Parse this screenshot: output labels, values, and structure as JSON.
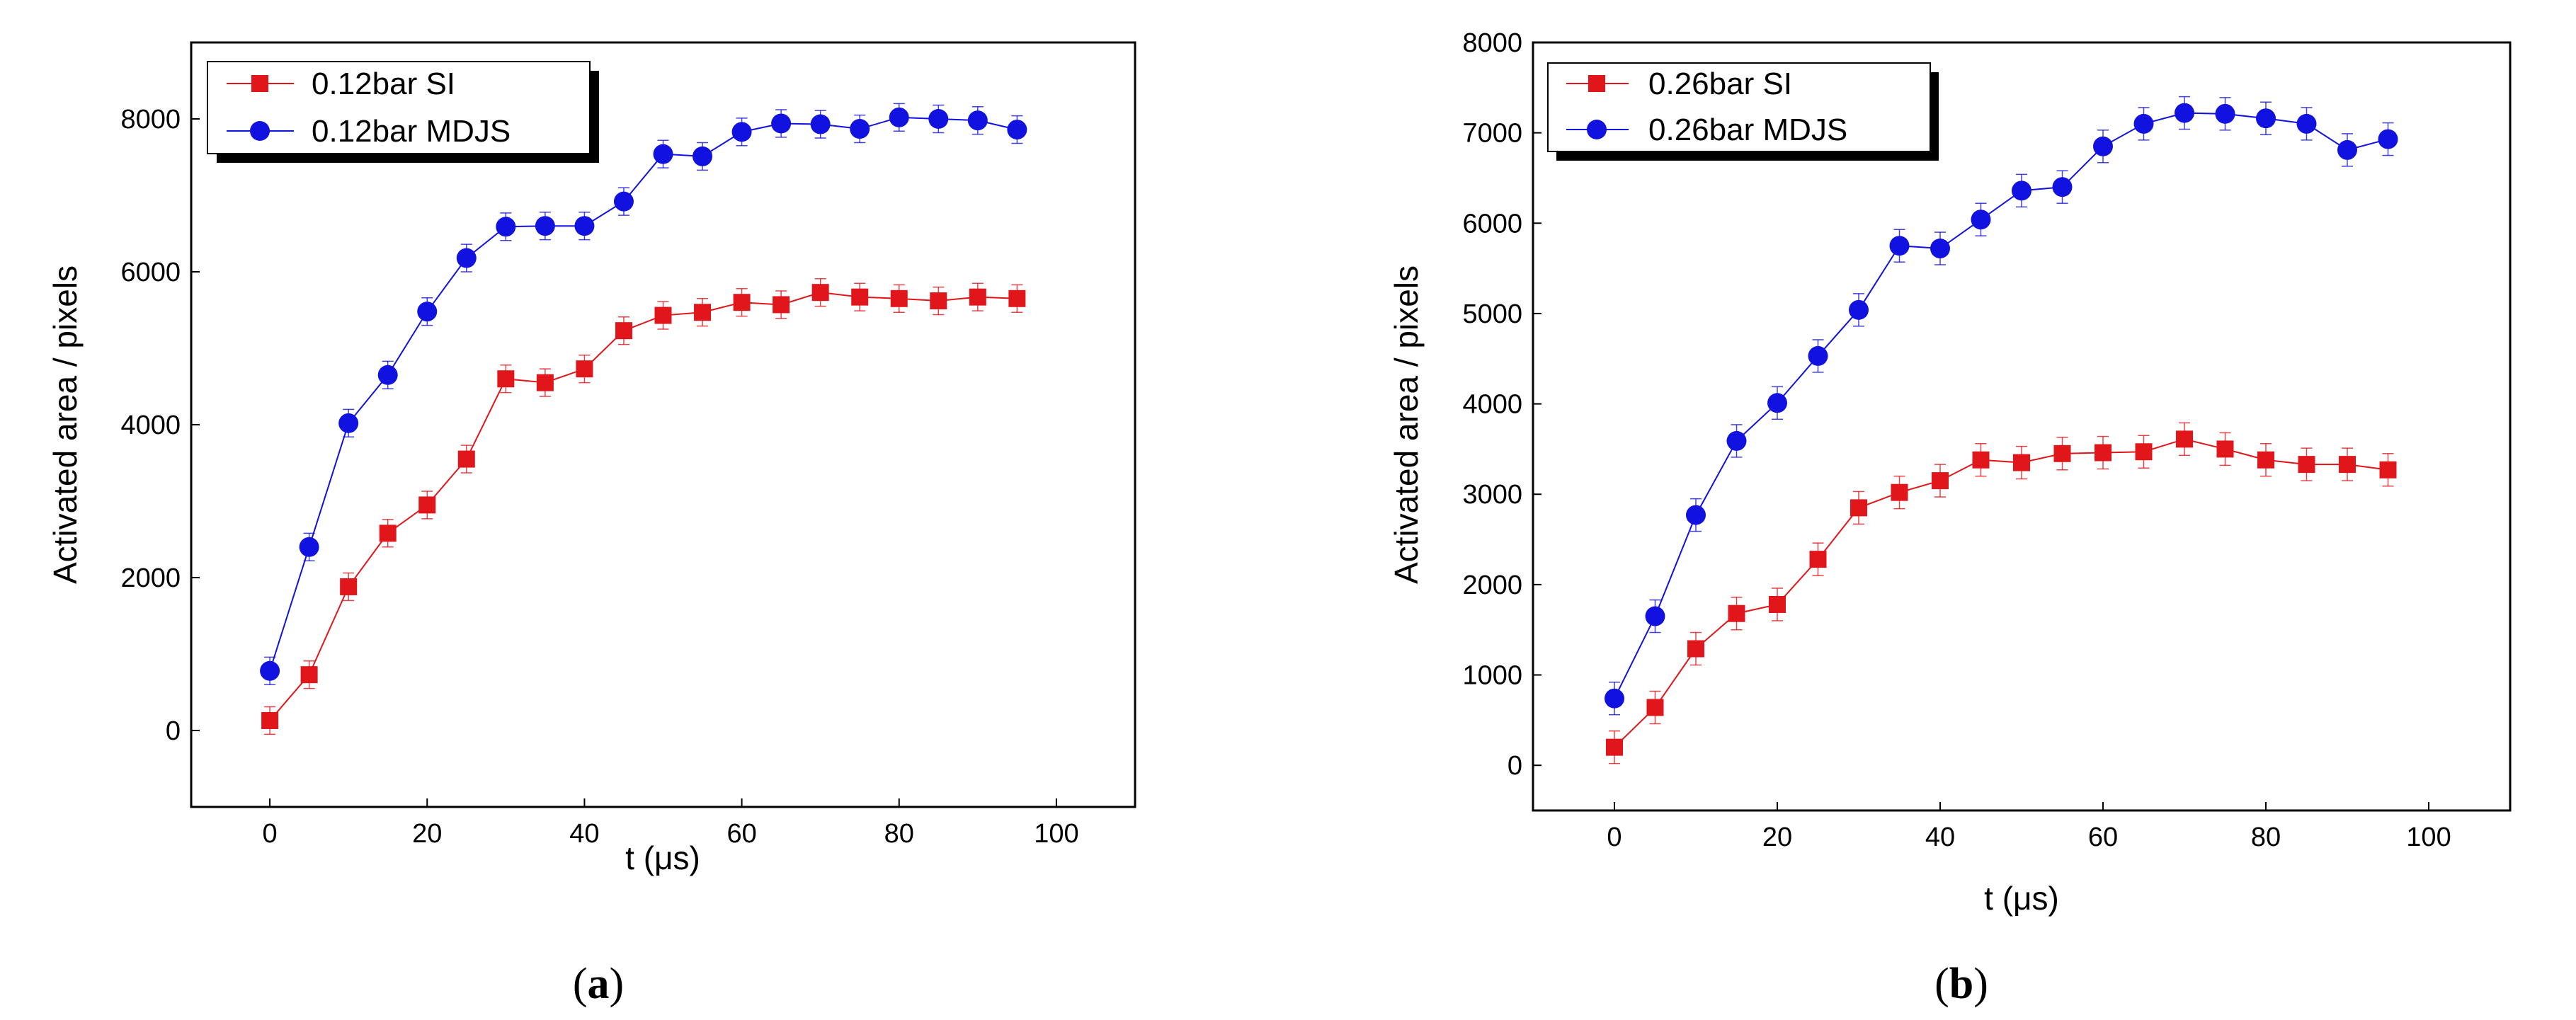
{
  "chart_data": [
    {
      "type": "line",
      "panel_label": "(a)",
      "panel_letter": "a",
      "title": "",
      "xlabel": "t (μs)",
      "ylabel": "Activated area / pixels",
      "xlim": [
        -10,
        110
      ],
      "ylim": [
        -1000,
        9000
      ],
      "xticks": [
        0,
        20,
        40,
        60,
        80,
        100
      ],
      "yticks": [
        0,
        2000,
        4000,
        6000,
        8000
      ],
      "legend_position": "top-left",
      "x": [
        0,
        5,
        10,
        15,
        20,
        25,
        30,
        35,
        40,
        45,
        50,
        55,
        60,
        65,
        70,
        75,
        80,
        85,
        90,
        95
      ],
      "series": [
        {
          "name": "0.12bar SI",
          "color": "#e0161b",
          "marker": "square",
          "values": [
            130,
            730,
            1880,
            2580,
            2950,
            3550,
            4600,
            4550,
            4730,
            5230,
            5430,
            5470,
            5600,
            5570,
            5730,
            5670,
            5650,
            5620,
            5670,
            5650
          ],
          "error": [
            180,
            180,
            180,
            180,
            180,
            180,
            180,
            180,
            180,
            180,
            180,
            180,
            180,
            180,
            180,
            180,
            180,
            180,
            180,
            180
          ]
        },
        {
          "name": "0.12bar MDJS",
          "color": "#1212e0",
          "marker": "circle",
          "values": [
            780,
            2400,
            4020,
            4650,
            5480,
            6180,
            6590,
            6600,
            6600,
            6920,
            7540,
            7510,
            7830,
            7940,
            7930,
            7870,
            8020,
            8000,
            7980,
            7860
          ],
          "error": [
            180,
            180,
            180,
            180,
            180,
            180,
            180,
            180,
            180,
            180,
            180,
            180,
            180,
            180,
            180,
            180,
            180,
            180,
            180,
            180
          ]
        }
      ]
    },
    {
      "type": "line",
      "panel_label": "(b)",
      "panel_letter": "b",
      "title": "",
      "xlabel": "t (μs)",
      "ylabel": "Activated area / pixels",
      "xlim": [
        -10,
        110
      ],
      "ylim": [
        -500,
        8000
      ],
      "xticks": [
        0,
        20,
        40,
        60,
        80,
        100
      ],
      "yticks": [
        0,
        1000,
        2000,
        3000,
        4000,
        5000,
        6000,
        7000,
        8000
      ],
      "legend_position": "top-left",
      "x": [
        0,
        5,
        10,
        15,
        20,
        25,
        30,
        35,
        40,
        45,
        50,
        55,
        60,
        65,
        70,
        75,
        80,
        85,
        90,
        95
      ],
      "series": [
        {
          "name": "0.26bar SI",
          "color": "#e0161b",
          "marker": "square",
          "values": [
            200,
            640,
            1290,
            1680,
            1780,
            2280,
            2850,
            3020,
            3150,
            3380,
            3350,
            3450,
            3460,
            3470,
            3610,
            3500,
            3380,
            3330,
            3330,
            3270
          ],
          "error": [
            180,
            180,
            180,
            180,
            180,
            180,
            180,
            180,
            180,
            180,
            180,
            180,
            180,
            180,
            180,
            180,
            180,
            180,
            180,
            180
          ]
        },
        {
          "name": "0.26bar MDJS",
          "color": "#1212e0",
          "marker": "circle",
          "values": [
            740,
            1650,
            2770,
            3590,
            4010,
            4530,
            5040,
            5750,
            5720,
            6040,
            6360,
            6400,
            6850,
            7100,
            7220,
            7210,
            7160,
            7100,
            6810,
            6930
          ],
          "error": [
            180,
            180,
            180,
            180,
            180,
            180,
            180,
            180,
            180,
            180,
            180,
            180,
            180,
            180,
            180,
            180,
            180,
            180,
            180,
            180
          ]
        }
      ]
    }
  ]
}
